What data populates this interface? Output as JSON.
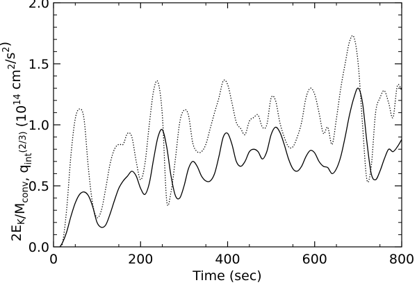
{
  "chart_data": {
    "type": "line",
    "xlabel": "Time (sec)",
    "ylabel": {
      "parts": [
        {
          "t": "2E",
          "s": "normal"
        },
        {
          "t": "K",
          "s": "sub"
        },
        {
          "t": "/M",
          "s": "normal"
        },
        {
          "t": "conv",
          "s": "sub"
        },
        {
          "t": ", q",
          "s": "normal"
        },
        {
          "t": "int",
          "s": "sub"
        },
        {
          "t": "(2/3)",
          "s": "sup"
        },
        {
          "t": "   (10",
          "s": "normal"
        },
        {
          "t": "14",
          "s": "sup"
        },
        {
          "t": " cm",
          "s": "normal"
        },
        {
          "t": "2",
          "s": "sup"
        },
        {
          "t": "/s",
          "s": "normal"
        },
        {
          "t": "2",
          "s": "sup"
        },
        {
          "t": ")",
          "s": "normal"
        }
      ]
    },
    "xlim": [
      0,
      800
    ],
    "ylim": [
      0,
      2.0
    ],
    "xticks": [
      0,
      200,
      400,
      600,
      800
    ],
    "xtick_labels": [
      "0",
      "200",
      "400",
      "600",
      "800"
    ],
    "yticks": [
      0.0,
      0.5,
      1.0,
      1.5,
      2.0
    ],
    "ytick_labels": [
      "0.0",
      "0.5",
      "1.0",
      "1.5",
      "2.0"
    ],
    "series": [
      {
        "style": "solid",
        "x": [
          0,
          10,
          20,
          30,
          40,
          50,
          60,
          70,
          80,
          90,
          100,
          110,
          120,
          130,
          140,
          150,
          160,
          170,
          180,
          190,
          200,
          210,
          220,
          230,
          240,
          250,
          260,
          270,
          280,
          290,
          300,
          310,
          320,
          330,
          340,
          350,
          360,
          370,
          380,
          390,
          400,
          410,
          420,
          430,
          440,
          450,
          460,
          470,
          480,
          490,
          500,
          510,
          520,
          530,
          540,
          550,
          560,
          570,
          580,
          590,
          600,
          610,
          620,
          630,
          640,
          650,
          660,
          670,
          680,
          690,
          700,
          710,
          720,
          730,
          740,
          750,
          760,
          770,
          780,
          790,
          800
        ],
        "y": [
          -0.05,
          -0.02,
          0.03,
          0.12,
          0.25,
          0.36,
          0.43,
          0.45,
          0.42,
          0.33,
          0.2,
          0.16,
          0.18,
          0.27,
          0.38,
          0.48,
          0.54,
          0.58,
          0.62,
          0.58,
          0.48,
          0.43,
          0.52,
          0.72,
          0.9,
          0.96,
          0.82,
          0.58,
          0.42,
          0.4,
          0.5,
          0.64,
          0.7,
          0.66,
          0.58,
          0.54,
          0.54,
          0.6,
          0.74,
          0.9,
          0.93,
          0.84,
          0.7,
          0.66,
          0.7,
          0.78,
          0.8,
          0.78,
          0.72,
          0.78,
          0.92,
          0.98,
          0.94,
          0.84,
          0.72,
          0.64,
          0.62,
          0.66,
          0.74,
          0.79,
          0.77,
          0.7,
          0.66,
          0.65,
          0.6,
          0.64,
          0.74,
          0.9,
          1.08,
          1.22,
          1.3,
          1.18,
          0.86,
          0.6,
          0.55,
          0.62,
          0.72,
          0.8,
          0.78,
          0.82,
          0.88
        ]
      },
      {
        "style": "dotted",
        "x": [
          0,
          10,
          20,
          30,
          40,
          50,
          60,
          70,
          80,
          90,
          100,
          110,
          120,
          130,
          140,
          150,
          160,
          170,
          180,
          190,
          200,
          210,
          220,
          230,
          240,
          250,
          260,
          270,
          280,
          290,
          300,
          310,
          320,
          330,
          340,
          350,
          360,
          370,
          380,
          390,
          400,
          410,
          420,
          430,
          440,
          450,
          460,
          470,
          480,
          490,
          500,
          510,
          520,
          530,
          540,
          550,
          560,
          570,
          580,
          590,
          600,
          610,
          620,
          630,
          640,
          650,
          660,
          670,
          680,
          690,
          700,
          710,
          720,
          730,
          740,
          750,
          760,
          770,
          780,
          790,
          800
        ],
        "y": [
          -0.05,
          -0.02,
          0.02,
          0.3,
          0.75,
          1.05,
          1.13,
          1.05,
          0.65,
          0.35,
          0.24,
          0.3,
          0.48,
          0.68,
          0.8,
          0.84,
          0.84,
          0.93,
          0.9,
          0.7,
          0.55,
          0.68,
          1.0,
          1.28,
          1.35,
          1.08,
          0.38,
          0.45,
          0.72,
          1.02,
          1.12,
          1.08,
          0.85,
          0.78,
          0.78,
          0.84,
          0.97,
          1.1,
          1.22,
          1.36,
          1.33,
          1.18,
          1.02,
          0.97,
          0.92,
          1.03,
          1.06,
          1.08,
          0.98,
          1.0,
          1.22,
          1.2,
          1.02,
          0.9,
          0.82,
          0.82,
          0.9,
          1.02,
          1.22,
          1.3,
          1.25,
          1.1,
          0.93,
          0.98,
          0.84,
          1.05,
          1.3,
          1.5,
          1.68,
          1.72,
          1.5,
          1.0,
          0.55,
          0.66,
          1.1,
          1.22,
          1.28,
          1.18,
          1.06,
          1.32,
          1.28
        ]
      }
    ]
  }
}
